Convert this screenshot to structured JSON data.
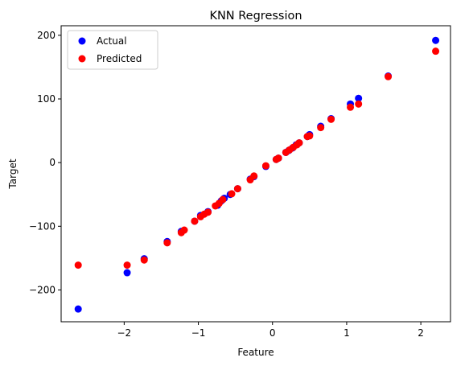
{
  "chart_data": {
    "type": "scatter",
    "title": "KNN Regression",
    "xlabel": "Feature",
    "ylabel": "Target",
    "xlim": [
      -2.85,
      2.4
    ],
    "ylim": [
      -250,
      215
    ],
    "xticks": [
      -2,
      -1,
      0,
      1,
      2
    ],
    "yticks": [
      -200,
      -100,
      0,
      100,
      200
    ],
    "legend_position": "top-left",
    "series": [
      {
        "name": "Actual",
        "color": "#0000ff",
        "points": [
          [
            -2.62,
            -230
          ],
          [
            -1.96,
            -173
          ],
          [
            -1.73,
            -151
          ],
          [
            -1.42,
            -124
          ],
          [
            -1.23,
            -108
          ],
          [
            -1.05,
            -92
          ],
          [
            -0.97,
            -83
          ],
          [
            -0.87,
            -77
          ],
          [
            -0.74,
            -67
          ],
          [
            -0.69,
            -60
          ],
          [
            -0.65,
            -56
          ],
          [
            -0.57,
            -50
          ],
          [
            -0.47,
            -41
          ],
          [
            -0.3,
            -26
          ],
          [
            -0.25,
            -22
          ],
          [
            -0.09,
            -6
          ],
          [
            0.05,
            5
          ],
          [
            0.08,
            7
          ],
          [
            0.18,
            16
          ],
          [
            0.22,
            19
          ],
          [
            0.27,
            23
          ],
          [
            0.32,
            28
          ],
          [
            0.36,
            31
          ],
          [
            0.47,
            41
          ],
          [
            0.5,
            44
          ],
          [
            0.65,
            57
          ],
          [
            0.79,
            69
          ],
          [
            1.05,
            92
          ],
          [
            1.16,
            101
          ],
          [
            1.56,
            136
          ],
          [
            2.2,
            192
          ]
        ]
      },
      {
        "name": "Predicted",
        "color": "#ff0000",
        "points": [
          [
            -2.62,
            -161
          ],
          [
            -1.96,
            -161
          ],
          [
            -1.73,
            -153
          ],
          [
            -1.42,
            -126
          ],
          [
            -1.23,
            -110
          ],
          [
            -1.19,
            -106
          ],
          [
            -1.05,
            -92
          ],
          [
            -0.97,
            -85
          ],
          [
            -0.92,
            -81
          ],
          [
            -0.87,
            -78
          ],
          [
            -0.77,
            -68
          ],
          [
            -0.72,
            -64
          ],
          [
            -0.67,
            -58
          ],
          [
            -0.55,
            -49
          ],
          [
            -0.47,
            -41
          ],
          [
            -0.3,
            -27
          ],
          [
            -0.25,
            -21
          ],
          [
            -0.09,
            -5
          ],
          [
            0.05,
            5
          ],
          [
            0.08,
            7
          ],
          [
            0.18,
            16
          ],
          [
            0.23,
            20
          ],
          [
            0.28,
            24
          ],
          [
            0.33,
            28
          ],
          [
            0.36,
            31
          ],
          [
            0.47,
            41
          ],
          [
            0.5,
            42
          ],
          [
            0.65,
            55
          ],
          [
            0.79,
            68
          ],
          [
            1.05,
            87
          ],
          [
            1.16,
            92
          ],
          [
            1.56,
            135
          ],
          [
            2.2,
            175
          ]
        ]
      }
    ]
  }
}
